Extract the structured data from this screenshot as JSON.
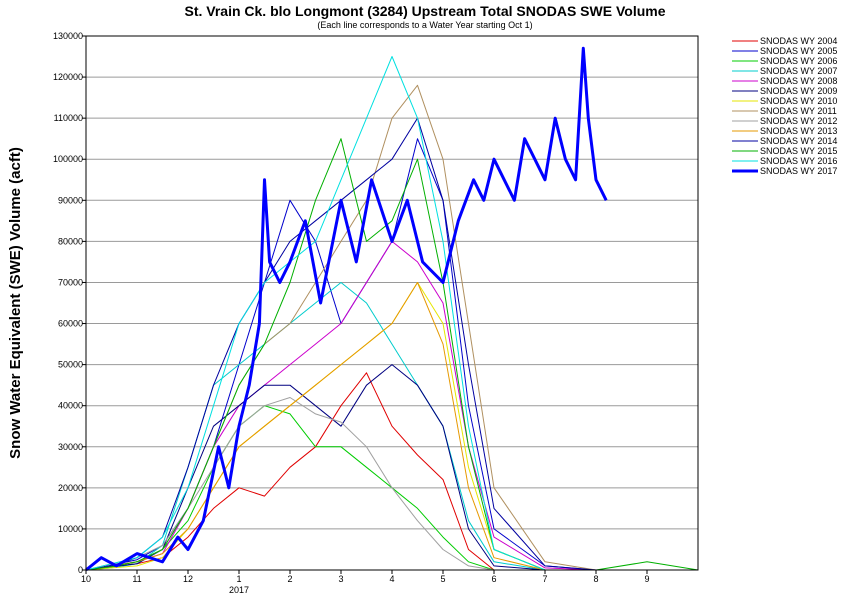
{
  "chart_data": {
    "type": "line",
    "title": "St. Vrain Ck. blo Longmont (3284) Upstream Total SNODAS SWE Volume",
    "subtitle": "(Each line corresponds to a Water Year starting Oct 1)",
    "ylabel": "Snow Water Equivalent (SWE) Volume (acft)",
    "xlabel": "",
    "ylim": [
      0,
      130000
    ],
    "yticks": [
      0,
      10000,
      20000,
      30000,
      40000,
      50000,
      60000,
      70000,
      80000,
      90000,
      100000,
      110000,
      120000,
      130000
    ],
    "ytick_labels": [
      "0",
      "10000",
      "20000",
      "30000",
      "40000",
      "50000",
      "60000",
      "70000",
      "80000",
      "90000",
      "100000",
      "110000",
      "120000",
      "130000"
    ],
    "x_unit": "month (1 = Oct 1)",
    "xlim": [
      0,
      12
    ],
    "xticks": [
      0,
      1,
      2,
      3,
      4,
      5,
      6,
      7,
      8,
      9,
      10,
      11
    ],
    "xtick_labels": [
      "10",
      "11",
      "12",
      "1",
      "2",
      "3",
      "4",
      "5",
      "6",
      "7",
      "8",
      "9"
    ],
    "xtick_sublabel": {
      "at": 3,
      "text": "2017"
    },
    "grid": "horizontal",
    "legend_position": "right",
    "series": [
      {
        "name": "SNODAS WY 2004",
        "color": "#e00000",
        "width": 1,
        "x": [
          0,
          0.5,
          1,
          1.5,
          2,
          2.5,
          3,
          3.5,
          4,
          4.5,
          5,
          5.5,
          6,
          6.5,
          7,
          7.5,
          8,
          9,
          10,
          11,
          12
        ],
        "y": [
          0,
          800,
          1500,
          3000,
          8000,
          15000,
          20000,
          18000,
          25000,
          30000,
          40000,
          48000,
          35000,
          28000,
          22000,
          5000,
          0,
          0,
          0,
          0,
          0
        ]
      },
      {
        "name": "SNODAS WY 2005",
        "color": "#0000cc",
        "width": 1,
        "x": [
          0,
          0.5,
          1,
          1.5,
          2,
          2.5,
          3,
          3.5,
          4,
          4.5,
          5,
          5.5,
          6,
          6.5,
          7,
          7.5,
          8,
          9,
          10,
          11,
          12
        ],
        "y": [
          0,
          1200,
          2500,
          6000,
          15000,
          30000,
          50000,
          70000,
          90000,
          80000,
          60000,
          70000,
          80000,
          105000,
          90000,
          40000,
          10000,
          1000,
          0,
          0,
          0
        ]
      },
      {
        "name": "SNODAS WY 2006",
        "color": "#00cc00",
        "width": 1,
        "x": [
          0,
          0.5,
          1,
          1.5,
          2,
          2.5,
          3,
          3.5,
          4,
          4.5,
          5,
          5.5,
          6,
          6.5,
          7,
          7.5,
          8,
          9,
          10,
          11,
          12
        ],
        "y": [
          0,
          1000,
          2000,
          5000,
          12000,
          25000,
          35000,
          40000,
          38000,
          30000,
          30000,
          25000,
          20000,
          15000,
          8000,
          2000,
          0,
          0,
          0,
          0,
          0
        ]
      },
      {
        "name": "SNODAS WY 2007",
        "color": "#00cccc",
        "width": 1,
        "x": [
          0,
          0.5,
          1,
          1.5,
          2,
          2.5,
          3,
          3.5,
          4,
          4.5,
          5,
          5.5,
          6,
          6.5,
          7,
          7.5,
          8,
          9,
          10,
          11,
          12
        ],
        "y": [
          0,
          500,
          1500,
          6000,
          25000,
          45000,
          50000,
          55000,
          60000,
          65000,
          70000,
          65000,
          55000,
          45000,
          35000,
          12000,
          2000,
          0,
          0,
          0,
          0
        ]
      },
      {
        "name": "SNODAS WY 2008",
        "color": "#cc00cc",
        "width": 1,
        "x": [
          0,
          0.5,
          1,
          1.5,
          2,
          2.5,
          3,
          3.5,
          4,
          4.5,
          5,
          5.5,
          6,
          6.5,
          7,
          7.5,
          8,
          9,
          10,
          11,
          12
        ],
        "y": [
          0,
          1000,
          2000,
          4000,
          15000,
          30000,
          40000,
          45000,
          50000,
          55000,
          60000,
          70000,
          80000,
          75000,
          65000,
          30000,
          8000,
          500,
          0,
          0,
          0
        ]
      },
      {
        "name": "SNODAS WY 2009",
        "color": "#000080",
        "width": 1,
        "x": [
          0,
          0.5,
          1,
          1.5,
          2,
          2.5,
          3,
          3.5,
          4,
          4.5,
          5,
          5.5,
          6,
          6.5,
          7,
          7.5,
          8,
          9,
          10,
          11,
          12
        ],
        "y": [
          0,
          800,
          1500,
          5000,
          20000,
          35000,
          40000,
          45000,
          45000,
          40000,
          35000,
          45000,
          50000,
          45000,
          35000,
          10000,
          1000,
          0,
          0,
          0,
          0
        ]
      },
      {
        "name": "SNODAS WY 2010",
        "color": "#e6e600",
        "width": 1,
        "x": [
          0,
          0.5,
          1,
          1.5,
          2,
          2.5,
          3,
          3.5,
          4,
          4.5,
          5,
          5.5,
          6,
          6.5,
          7,
          7.5,
          8,
          9,
          10,
          11,
          12
        ],
        "y": [
          0,
          500,
          1000,
          3000,
          10000,
          20000,
          30000,
          35000,
          40000,
          45000,
          50000,
          55000,
          60000,
          70000,
          60000,
          25000,
          5000,
          0,
          0,
          0,
          0
        ]
      },
      {
        "name": "SNODAS WY 2011",
        "color": "#b09060",
        "width": 1,
        "x": [
          0,
          0.5,
          1,
          1.5,
          2,
          2.5,
          3,
          3.5,
          4,
          4.5,
          5,
          5.5,
          6,
          6.5,
          7,
          7.5,
          8,
          9,
          10,
          11,
          12
        ],
        "y": [
          0,
          800,
          2000,
          5000,
          15000,
          30000,
          45000,
          55000,
          60000,
          70000,
          80000,
          90000,
          110000,
          118000,
          100000,
          60000,
          20000,
          2000,
          0,
          0,
          0
        ]
      },
      {
        "name": "SNODAS WY 2012",
        "color": "#a0a0a0",
        "width": 1,
        "x": [
          0,
          0.5,
          1,
          1.5,
          2,
          2.5,
          3,
          3.5,
          4,
          4.5,
          5,
          5.5,
          6,
          6.5,
          7,
          7.5,
          8,
          9,
          10,
          11,
          12
        ],
        "y": [
          0,
          1500,
          3000,
          6000,
          15000,
          25000,
          35000,
          40000,
          42000,
          38000,
          36000,
          30000,
          20000,
          12000,
          5000,
          1000,
          0,
          0,
          0,
          0,
          0
        ]
      },
      {
        "name": "SNODAS WY 2013",
        "color": "#e69900",
        "width": 1,
        "x": [
          0,
          0.5,
          1,
          1.5,
          2,
          2.5,
          3,
          3.5,
          4,
          4.5,
          5,
          5.5,
          6,
          6.5,
          7,
          7.5,
          8,
          9,
          10,
          11,
          12
        ],
        "y": [
          0,
          1000,
          2000,
          4000,
          10000,
          20000,
          30000,
          35000,
          40000,
          45000,
          50000,
          55000,
          60000,
          70000,
          55000,
          20000,
          3000,
          0,
          0,
          0,
          0
        ]
      },
      {
        "name": "SNODAS WY 2014",
        "color": "#0000a0",
        "width": 1,
        "x": [
          0,
          0.5,
          1,
          1.5,
          2,
          2.5,
          3,
          3.5,
          4,
          4.5,
          5,
          5.5,
          6,
          6.5,
          7,
          7.5,
          8,
          9,
          10,
          11,
          12
        ],
        "y": [
          0,
          1000,
          3000,
          8000,
          25000,
          45000,
          60000,
          70000,
          80000,
          85000,
          90000,
          95000,
          100000,
          110000,
          90000,
          50000,
          15000,
          1000,
          0,
          0,
          0
        ]
      },
      {
        "name": "SNODAS WY 2015",
        "color": "#00b000",
        "width": 1,
        "x": [
          0,
          0.5,
          1,
          1.5,
          2,
          2.5,
          3,
          3.5,
          4,
          4.5,
          5,
          5.5,
          6,
          6.5,
          7,
          7.5,
          8,
          9,
          10,
          11,
          12
        ],
        "y": [
          0,
          800,
          2000,
          5000,
          15000,
          30000,
          45000,
          55000,
          70000,
          90000,
          105000,
          80000,
          85000,
          100000,
          70000,
          30000,
          5000,
          0,
          0,
          2000,
          0
        ]
      },
      {
        "name": "SNODAS WY 2016",
        "color": "#00e0e0",
        "width": 1,
        "x": [
          0,
          0.5,
          1,
          1.5,
          2,
          2.5,
          3,
          3.5,
          4,
          4.5,
          5,
          5.5,
          6,
          6.5,
          7,
          7.5,
          8,
          9,
          10,
          11,
          12
        ],
        "y": [
          0,
          1500,
          3000,
          8000,
          20000,
          40000,
          60000,
          70000,
          75000,
          80000,
          95000,
          110000,
          125000,
          110000,
          80000,
          35000,
          5000,
          0,
          0,
          0,
          0
        ]
      },
      {
        "name": "SNODAS WY 2017",
        "color": "#0000ff",
        "width": 3,
        "x": [
          0,
          0.3,
          0.6,
          1.0,
          1.5,
          1.8,
          2.0,
          2.3,
          2.6,
          2.8,
          3.0,
          3.2,
          3.4,
          3.5,
          3.6,
          3.8,
          4.0,
          4.3,
          4.6,
          5.0,
          5.3,
          5.6,
          6.0,
          6.3,
          6.6,
          7.0,
          7.3,
          7.6,
          7.8,
          8.0,
          8.2,
          8.4,
          8.6,
          8.8,
          9.0,
          9.2,
          9.4,
          9.6,
          9.75,
          9.85,
          10.0,
          10.2
        ],
        "y": [
          0,
          3000,
          1000,
          4000,
          2000,
          8000,
          5000,
          12000,
          30000,
          20000,
          35000,
          45000,
          60000,
          95000,
          75000,
          70000,
          75000,
          85000,
          65000,
          90000,
          75000,
          95000,
          80000,
          90000,
          75000,
          70000,
          85000,
          95000,
          90000,
          100000,
          95000,
          90000,
          105000,
          100000,
          95000,
          110000,
          100000,
          95000,
          127000,
          110000,
          95000,
          90000
        ]
      }
    ]
  }
}
